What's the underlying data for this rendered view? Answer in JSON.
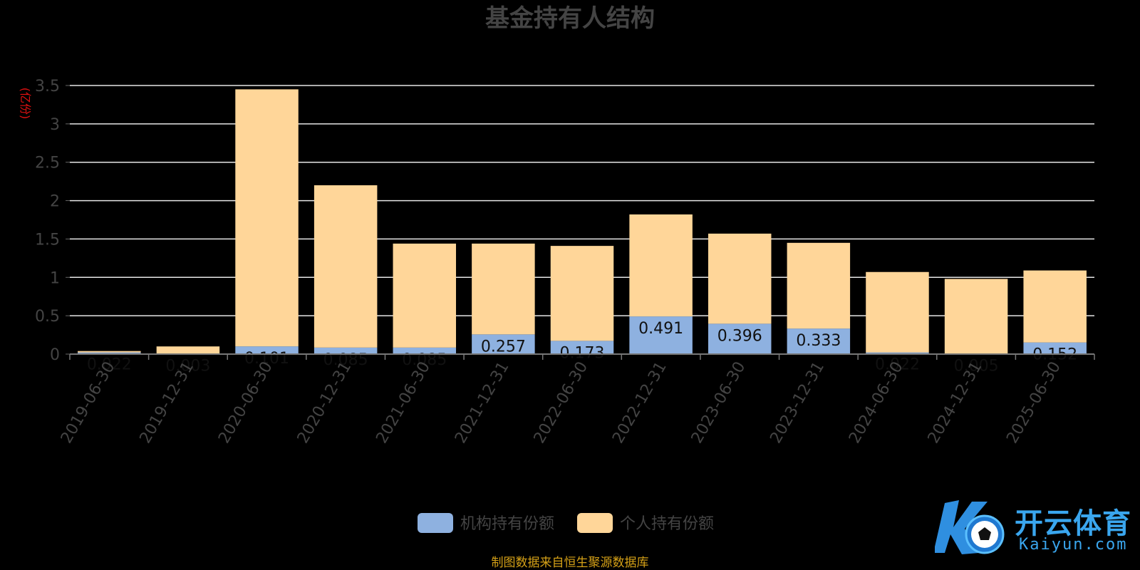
{
  "chart_data": {
    "type": "bar",
    "stacked": true,
    "title": "基金持有人结构",
    "ylabel": "(亿份)",
    "xlabel": "",
    "ylim": [
      0,
      3.5
    ],
    "yticks": [
      "0",
      "0.5",
      "1",
      "1.5",
      "2",
      "2.5",
      "3",
      "3.5"
    ],
    "grid": true,
    "legend_position": "bottom",
    "categories": [
      "2019-06-30",
      "2019-12-31",
      "2020-06-30",
      "2020-12-31",
      "2021-06-30",
      "2021-12-31",
      "2022-06-30",
      "2022-12-31",
      "2023-06-30",
      "2023-12-31",
      "2024-06-30",
      "2024-12-31",
      "2025-06-30"
    ],
    "series": [
      {
        "name": "机构持有份额",
        "color": "#8eb1e0",
        "values": [
          0.022,
          0.003,
          0.101,
          0.085,
          0.085,
          0.257,
          0.173,
          0.491,
          0.396,
          0.333,
          0.022,
          0.005,
          0.152
        ],
        "labels": [
          "0.022",
          "0.003",
          "0.101",
          "0.085",
          "0.085",
          "0.257",
          "0.173",
          "0.491",
          "0.396",
          "0.333",
          "0.022",
          "0.005",
          "0.152"
        ]
      },
      {
        "name": "个人持有份额",
        "color": "#ffd699",
        "values": [
          0.018,
          0.097,
          3.349,
          2.115,
          1.355,
          1.183,
          1.237,
          1.329,
          1.174,
          1.117,
          1.048,
          0.975,
          0.938
        ],
        "labels": []
      }
    ],
    "source_note": "制图数据来自恒生聚源数据库"
  },
  "watermark": {
    "zh": "开云体育",
    "en": "Kaiyun.com"
  }
}
